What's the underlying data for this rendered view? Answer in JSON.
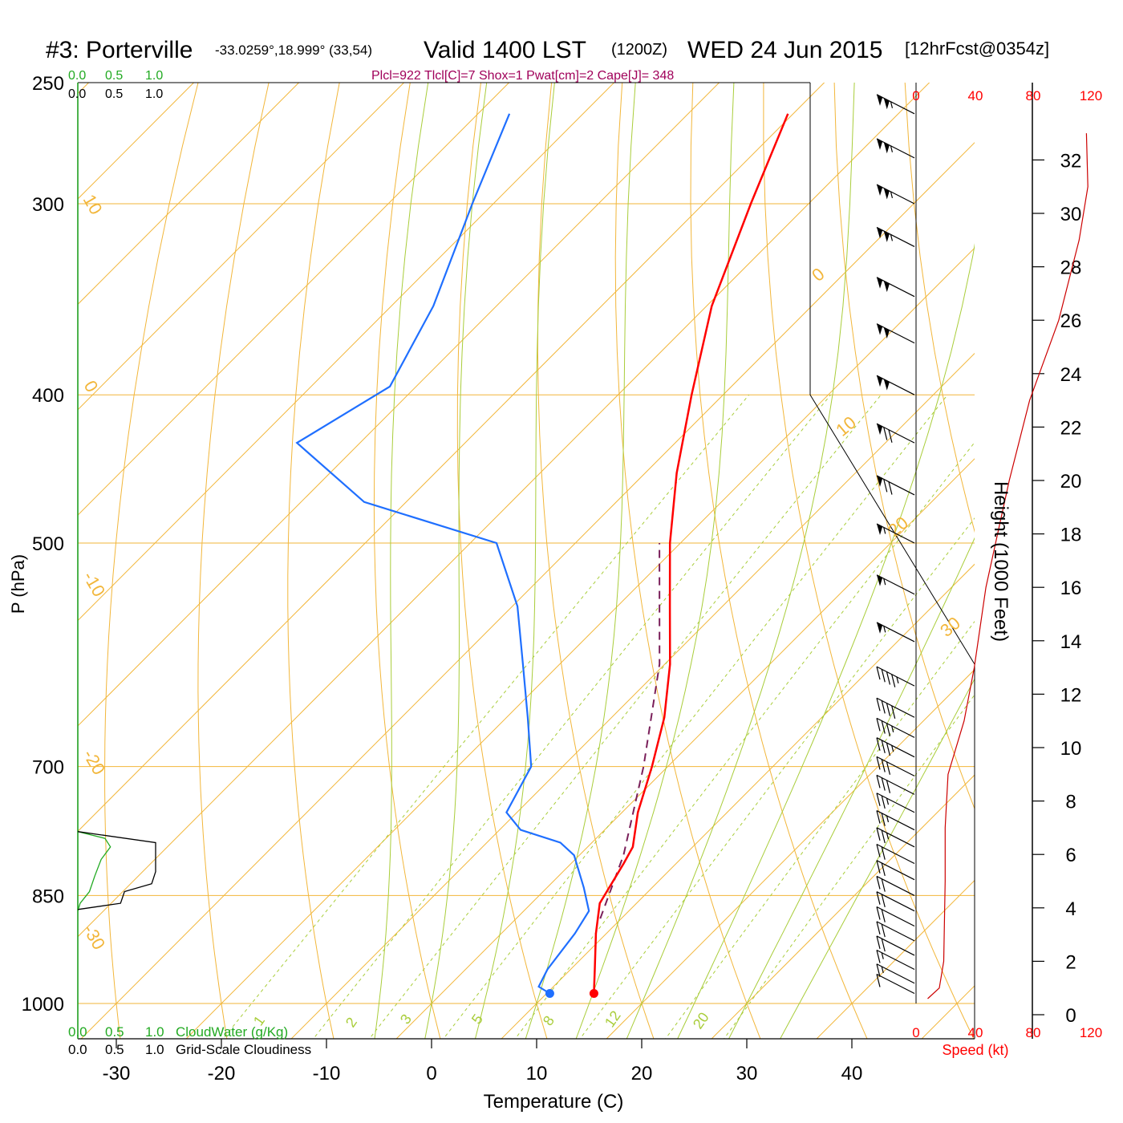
{
  "header": {
    "station": "#3: Porterville",
    "coords": "-33.0259°,18.999° (33,54)",
    "valid": "Valid 1400 LST",
    "utc": "(1200Z)",
    "date": "WED 24 Jun 2015",
    "forecast": "[12hrFcst@0354z]",
    "indices": "Plcl=922 Tlcl[C]=7 Shox=1 Pwat[cm]=2 Cape[J]= 348"
  },
  "colors": {
    "temperature": "#ff0000",
    "dewpoint": "#1f6fff",
    "parcel": "#7a1f5a",
    "isotherm": "#f2b63a",
    "moist_adiabat": "#a9cd3a",
    "cloud_water": "#22aa22",
    "wind_speed": "#cc0000"
  },
  "chart_data": {
    "type": "skew-t",
    "xlabel": "Temperature (C)",
    "ylabel": "P (hPa)",
    "right_ylabel": "Height (1000 Feet)",
    "x_ticks": [
      -30,
      -20,
      -10,
      0,
      10,
      20,
      30,
      40
    ],
    "p_ticks": [
      250,
      300,
      400,
      500,
      700,
      850,
      1000
    ],
    "height_ticks": [
      0,
      2,
      4,
      6,
      8,
      10,
      12,
      14,
      16,
      18,
      20,
      22,
      24,
      26,
      28,
      30,
      32
    ],
    "isotherm_labels": [
      "10",
      "0",
      "-10",
      "-20",
      "-30",
      "0",
      "10",
      "20",
      "30"
    ],
    "mixing_ratio_labels": [
      "1",
      "2",
      "3",
      "5",
      "8",
      "12",
      "20"
    ],
    "cloud_scale_top": [
      "0.0",
      "0.5",
      "1.0"
    ],
    "cloud_scale_top2": [
      "0.0",
      "0.5",
      "1.0"
    ],
    "cloud_scale_bottom": [
      "0.0",
      "0.5",
      "1.0",
      "CloudWater (g/Kg)"
    ],
    "cloud_scale_bottom2": [
      "0.0",
      "0.5",
      "1.0",
      "Grid-Scale Cloudiness"
    ],
    "wind_speed_ticks": [
      "0",
      "40",
      "80",
      "120"
    ],
    "wind_speed_label": "Speed (kt)",
    "temperature": [
      {
        "p": 985,
        "t": 14.5
      },
      {
        "p": 950,
        "t": 12.3
      },
      {
        "p": 900,
        "t": 9.0
      },
      {
        "p": 860,
        "t": 6.5
      },
      {
        "p": 810,
        "t": 5.0
      },
      {
        "p": 790,
        "t": 4.3
      },
      {
        "p": 750,
        "t": 1.5
      },
      {
        "p": 700,
        "t": -1.5
      },
      {
        "p": 650,
        "t": -5.0
      },
      {
        "p": 600,
        "t": -9.5
      },
      {
        "p": 550,
        "t": -15.0
      },
      {
        "p": 500,
        "t": -21.0
      },
      {
        "p": 450,
        "t": -27.0
      },
      {
        "p": 400,
        "t": -33.0
      },
      {
        "p": 350,
        "t": -39.5
      },
      {
        "p": 300,
        "t": -45.5
      },
      {
        "p": 262,
        "t": -50.5
      }
    ],
    "dewpoint": [
      {
        "p": 985,
        "t": 10.3
      },
      {
        "p": 975,
        "t": 8.6
      },
      {
        "p": 950,
        "t": 7.8
      },
      {
        "p": 900,
        "t": 7.0
      },
      {
        "p": 870,
        "t": 6.2
      },
      {
        "p": 840,
        "t": 3.5
      },
      {
        "p": 800,
        "t": -0.5
      },
      {
        "p": 785,
        "t": -3.0
      },
      {
        "p": 770,
        "t": -8.0
      },
      {
        "p": 750,
        "t": -11.0
      },
      {
        "p": 700,
        "t": -13.0
      },
      {
        "p": 650,
        "t": -18.0
      },
      {
        "p": 600,
        "t": -23.5
      },
      {
        "p": 550,
        "t": -29.5
      },
      {
        "p": 500,
        "t": -37.5
      },
      {
        "p": 470,
        "t": -54.0
      },
      {
        "p": 430,
        "t": -66.0
      },
      {
        "p": 395,
        "t": -62.5
      },
      {
        "p": 350,
        "t": -66.0
      },
      {
        "p": 300,
        "t": -72.0
      },
      {
        "p": 262,
        "t": -77.0
      }
    ],
    "parcel": [
      {
        "p": 880,
        "t": 8.0
      },
      {
        "p": 800,
        "t": 4.2
      },
      {
        "p": 700,
        "t": -2.3
      },
      {
        "p": 600,
        "t": -10.5
      },
      {
        "p": 500,
        "t": -22.0
      }
    ],
    "cloud_water": [
      {
        "p": 772,
        "v": 0.0
      },
      {
        "p": 780,
        "v": 0.35
      },
      {
        "p": 790,
        "v": 0.42
      },
      {
        "p": 805,
        "v": 0.3
      },
      {
        "p": 825,
        "v": 0.22
      },
      {
        "p": 845,
        "v": 0.15
      },
      {
        "p": 860,
        "v": 0.03
      },
      {
        "p": 870,
        "v": 0.0
      }
    ],
    "cloudiness": [
      {
        "p": 772,
        "v": 0.0
      },
      {
        "p": 785,
        "v": 1.0
      },
      {
        "p": 820,
        "v": 1.0
      },
      {
        "p": 835,
        "v": 0.95
      },
      {
        "p": 845,
        "v": 0.6
      },
      {
        "p": 860,
        "v": 0.55
      },
      {
        "p": 868,
        "v": 0.0
      }
    ],
    "wind_speed": [
      {
        "h": 0.6,
        "v": 8
      },
      {
        "h": 1.0,
        "v": 16
      },
      {
        "h": 2.0,
        "v": 19
      },
      {
        "h": 5.0,
        "v": 20
      },
      {
        "h": 7.0,
        "v": 20
      },
      {
        "h": 9.0,
        "v": 22
      },
      {
        "h": 11.0,
        "v": 33
      },
      {
        "h": 13.0,
        "v": 40
      },
      {
        "h": 16.0,
        "v": 48
      },
      {
        "h": 20.0,
        "v": 64
      },
      {
        "h": 23.0,
        "v": 78
      },
      {
        "h": 26.0,
        "v": 98
      },
      {
        "h": 29.0,
        "v": 112
      },
      {
        "h": 31.0,
        "v": 118
      },
      {
        "h": 33.0,
        "v": 117
      }
    ],
    "wind_barbs": [
      {
        "p": 262,
        "speed": 105
      },
      {
        "p": 280,
        "speed": 105
      },
      {
        "p": 300,
        "speed": 105
      },
      {
        "p": 320,
        "speed": 105
      },
      {
        "p": 345,
        "speed": 100
      },
      {
        "p": 370,
        "speed": 100
      },
      {
        "p": 400,
        "speed": 100
      },
      {
        "p": 430,
        "speed": 70
      },
      {
        "p": 465,
        "speed": 70
      },
      {
        "p": 500,
        "speed": 55
      },
      {
        "p": 540,
        "speed": 55
      },
      {
        "p": 580,
        "speed": 55
      },
      {
        "p": 620,
        "speed": 45
      },
      {
        "p": 650,
        "speed": 40
      },
      {
        "p": 670,
        "speed": 35
      },
      {
        "p": 690,
        "speed": 35
      },
      {
        "p": 710,
        "speed": 30
      },
      {
        "p": 730,
        "speed": 30
      },
      {
        "p": 750,
        "speed": 25
      },
      {
        "p": 770,
        "speed": 25
      },
      {
        "p": 790,
        "speed": 25
      },
      {
        "p": 810,
        "speed": 20
      },
      {
        "p": 830,
        "speed": 20
      },
      {
        "p": 850,
        "speed": 20
      },
      {
        "p": 870,
        "speed": 20
      },
      {
        "p": 890,
        "speed": 20
      },
      {
        "p": 910,
        "speed": 20
      },
      {
        "p": 930,
        "speed": 20
      },
      {
        "p": 950,
        "speed": 15
      },
      {
        "p": 970,
        "speed": 15
      },
      {
        "p": 985,
        "speed": 10
      }
    ]
  }
}
